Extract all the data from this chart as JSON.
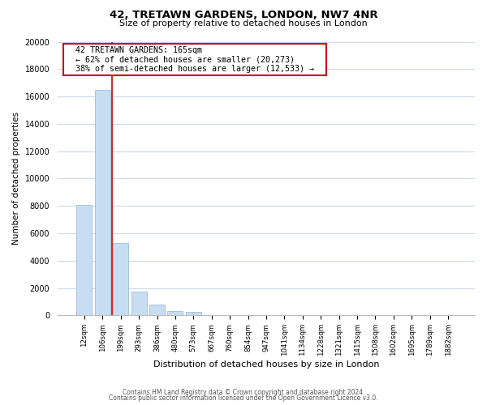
{
  "title_line1": "42, TRETAWN GARDENS, LONDON, NW7 4NR",
  "title_line2": "Size of property relative to detached houses in London",
  "xlabel": "Distribution of detached houses by size in London",
  "ylabel": "Number of detached properties",
  "bar_labels": [
    "12sqm",
    "106sqm",
    "199sqm",
    "293sqm",
    "386sqm",
    "480sqm",
    "573sqm",
    "667sqm",
    "760sqm",
    "854sqm",
    "947sqm",
    "1041sqm",
    "1134sqm",
    "1228sqm",
    "1321sqm",
    "1415sqm",
    "1508sqm",
    "1602sqm",
    "1695sqm",
    "1789sqm",
    "1882sqm"
  ],
  "bar_values": [
    8100,
    16500,
    5300,
    1750,
    800,
    300,
    270,
    0,
    0,
    0,
    0,
    0,
    0,
    0,
    0,
    0,
    0,
    0,
    0,
    0,
    0
  ],
  "bar_color": "#c7ddf2",
  "bar_edge_color": "#a0bcd8",
  "ylim": [
    0,
    20000
  ],
  "yticks": [
    0,
    2000,
    4000,
    6000,
    8000,
    10000,
    12000,
    14000,
    16000,
    18000,
    20000
  ],
  "annotation_title": "42 TRETAWN GARDENS: 165sqm",
  "annotation_line1": "← 62% of detached houses are smaller (20,273)",
  "annotation_line2": "38% of semi-detached houses are larger (12,533) →",
  "annotation_box_color": "#ffffff",
  "annotation_box_edge": "#cc0000",
  "red_line_color": "#cc0000",
  "footer_line1": "Contains HM Land Registry data © Crown copyright and database right 2024.",
  "footer_line2": "Contains public sector information licensed under the Open Government Licence v3.0.",
  "bg_color": "#ffffff",
  "grid_color": "#cdd8e8"
}
